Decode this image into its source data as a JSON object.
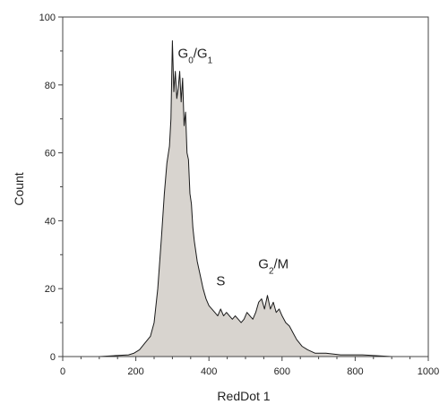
{
  "chart_data": {
    "type": "area",
    "xlabel": "RedDot 1",
    "ylabel": "Count",
    "xlim": [
      0,
      1000
    ],
    "ylim": [
      0,
      100
    ],
    "x_ticks": [
      0,
      200,
      400,
      600,
      800,
      1000
    ],
    "y_ticks": [
      0,
      20,
      40,
      60,
      80,
      100
    ],
    "x_minor_step": 50,
    "y_minor_step": 10,
    "grid": false,
    "fill_color": "#d8d4cf",
    "line_color": "#1a1a1a",
    "series": [
      {
        "x": [
          0,
          100,
          180,
          195,
          210,
          225,
          240,
          250,
          260,
          270,
          278,
          285,
          292,
          296,
          300,
          304,
          308,
          312,
          316,
          320,
          324,
          328,
          332,
          336,
          340,
          344,
          348,
          352,
          356,
          360,
          368,
          376,
          384,
          392,
          400,
          408,
          416,
          424,
          432,
          440,
          448,
          456,
          464,
          472,
          480,
          488,
          496,
          504,
          512,
          520,
          528,
          536,
          544,
          552,
          560,
          568,
          576,
          584,
          592,
          600,
          610,
          620,
          630,
          640,
          655,
          670,
          690,
          720,
          760,
          820,
          900,
          1000
        ],
        "y": [
          0,
          0,
          0.5,
          1,
          2,
          4,
          6,
          10,
          20,
          35,
          48,
          57,
          62,
          70,
          93,
          78,
          84,
          76,
          79,
          84,
          75,
          82,
          68,
          72,
          60,
          58,
          48,
          45,
          38,
          34,
          28,
          24,
          20,
          17,
          15,
          14,
          13,
          12,
          14,
          12,
          13,
          12,
          11,
          12,
          11,
          10,
          11,
          13,
          12,
          11,
          13,
          16,
          17,
          14,
          18,
          14,
          16,
          13,
          14,
          12,
          10,
          9,
          7,
          5,
          3,
          2,
          1,
          1,
          0.5,
          0.5,
          0,
          0
        ]
      }
    ],
    "annotations": [
      {
        "text": "G",
        "sub": "0",
        "text2": "/G",
        "sub2": "1",
        "x": 315,
        "y": 88
      },
      {
        "text": "S",
        "x": 420,
        "y": 21
      },
      {
        "text": "G",
        "sub": "2",
        "text2": "/M",
        "x": 535,
        "y": 26
      }
    ]
  }
}
